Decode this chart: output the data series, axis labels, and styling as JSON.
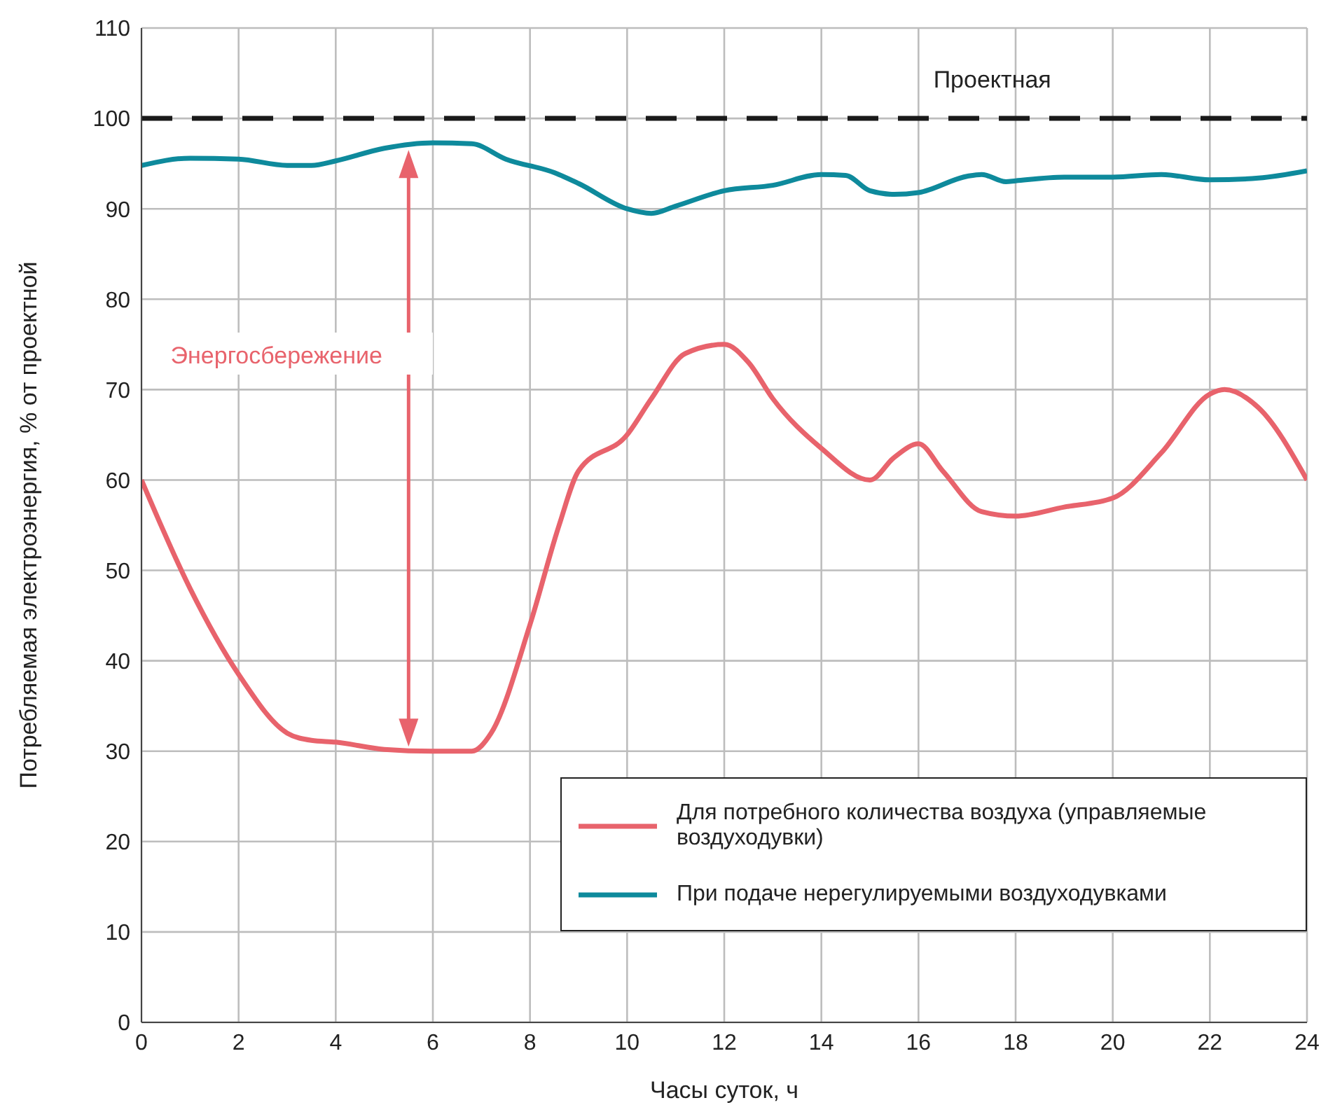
{
  "chart_data": {
    "type": "line",
    "xlabel": "Часы суток, ч",
    "ylabel": "Потребляемая электроэнергия, % от проектной",
    "xlim": [
      0,
      24
    ],
    "xticks": [
      0,
      2,
      4,
      6,
      8,
      10,
      12,
      14,
      16,
      18,
      20,
      22,
      24
    ],
    "ylim": [
      0,
      110
    ],
    "yticks": [
      0,
      10,
      20,
      30,
      40,
      50,
      60,
      70,
      80,
      90,
      100,
      110
    ],
    "grid": true,
    "legend": "bottom right",
    "marker": "none",
    "line_style": "solid",
    "series": [
      {
        "name": "Для потребного количества воздуха (управляемые воздуходувки)",
        "color": "#e8636c",
        "x": [
          0,
          1,
          2,
          3,
          3.5,
          4,
          5,
          6,
          6.8,
          7.2,
          8,
          8.6,
          9,
          10,
          10.5,
          11.2,
          12,
          12.5,
          13,
          14,
          15,
          15.5,
          16,
          16.5,
          17.3,
          18,
          19,
          20,
          21,
          22,
          22.3,
          23,
          24
        ],
        "values": [
          60,
          48,
          38.5,
          32,
          31.2,
          31,
          30.2,
          30,
          30,
          32,
          44,
          55,
          61,
          65,
          69,
          74,
          75,
          73,
          69,
          63.5,
          60,
          62.5,
          64,
          61,
          56.5,
          56,
          57,
          58,
          63,
          69.5,
          70,
          68,
          60
        ]
      },
      {
        "name": "При подаче нерегулируемыми воздуходувками",
        "color": "#0e8a9c",
        "x": [
          0,
          1,
          2,
          3,
          3.5,
          4,
          5,
          6,
          6.8,
          7.5,
          8.5,
          9,
          10,
          10.5,
          11,
          12,
          13,
          14,
          14.5,
          15,
          15.5,
          16,
          17,
          17.3,
          17.8,
          18,
          19,
          20,
          21,
          22,
          23,
          24
        ],
        "values": [
          94.8,
          95.6,
          95.5,
          94.8,
          94.8,
          95.3,
          96.7,
          97.3,
          97.2,
          95.5,
          94,
          92.8,
          90,
          89.5,
          90.3,
          92,
          92.6,
          93.8,
          93.7,
          92,
          91.6,
          91.8,
          93.6,
          93.8,
          93,
          93.1,
          93.5,
          93.5,
          93.8,
          93.2,
          93.4,
          94.2
        ]
      }
    ],
    "ref_lines": [
      {
        "axis": "y",
        "value": 100,
        "label": "Проектная",
        "color": "#1a1a1a",
        "line_style": "dashed"
      }
    ],
    "annotations": [
      "Энергосбережение"
    ]
  }
}
